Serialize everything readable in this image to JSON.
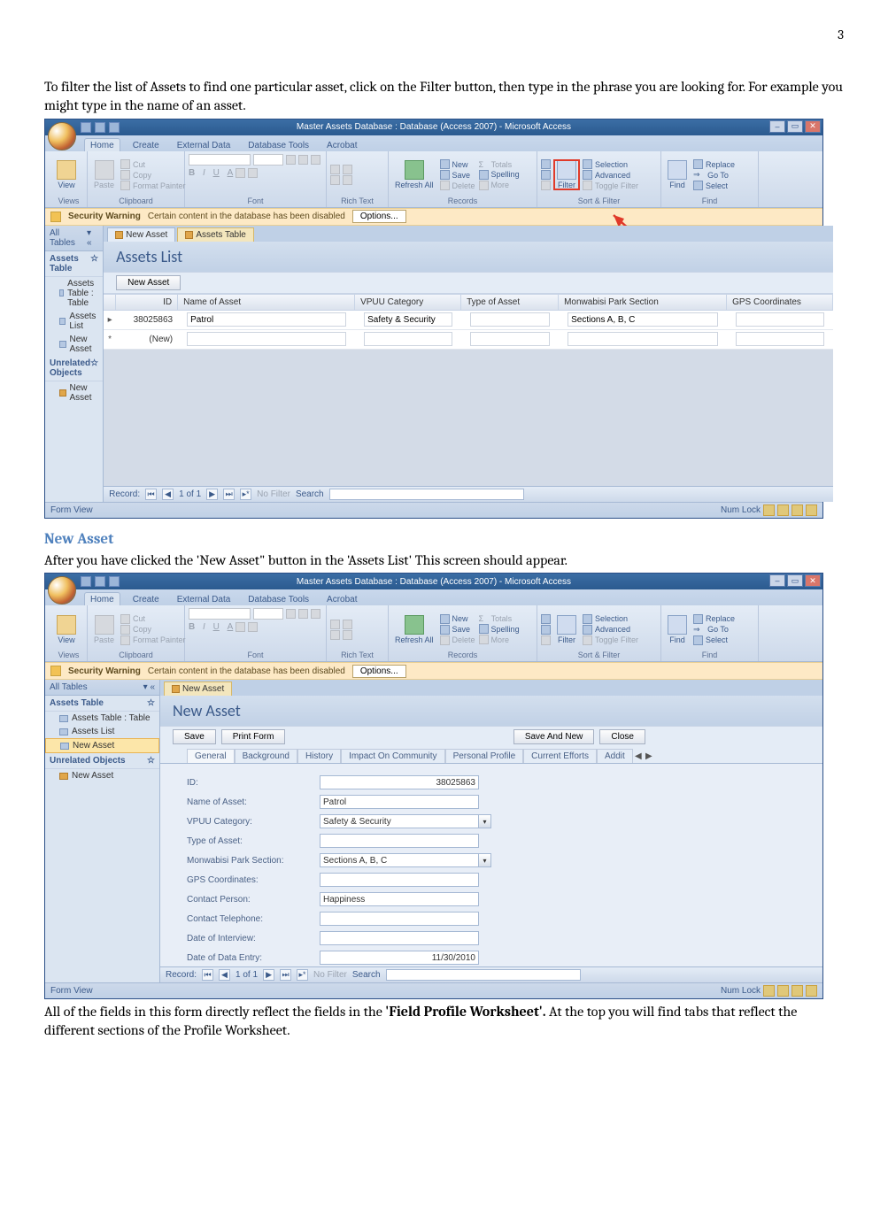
{
  "page_number": "3",
  "intro_para": "To filter the list of Assets to find one particular asset, click on the Filter button, then type in the phrase you are looking for. For example you might type in the name of an asset.",
  "section2_heading": "New Asset",
  "section2_para": "After you have clicked the 'New Asset\" button in the 'Assets List' This screen should appear.",
  "closing_para_pre": "All of the fields in this form directly reflect the fields in the ",
  "closing_para_bold": "'Field Profile Worksheet'.",
  "closing_para_post": "  At the top you will find tabs that reflect the different sections of the Profile Worksheet.",
  "access": {
    "title": "Master Assets Database : Database (Access 2007)  -  Microsoft Access",
    "tabs": [
      "Home",
      "Create",
      "External Data",
      "Database Tools",
      "Acrobat"
    ],
    "groups": {
      "views": {
        "label": "Views",
        "btn": "View"
      },
      "clipboard": {
        "label": "Clipboard",
        "paste": "Paste",
        "items": [
          "Cut",
          "Copy",
          "Format Painter"
        ]
      },
      "font": {
        "label": "Font"
      },
      "richtext": {
        "label": "Rich Text"
      },
      "records": {
        "label": "Records",
        "refresh": "Refresh All",
        "items": [
          "New",
          "Save",
          "Delete"
        ],
        "right": [
          "Totals",
          "Spelling",
          "More"
        ]
      },
      "sortfilter": {
        "label": "Sort & Filter",
        "filter": "Filter",
        "items": [
          "Selection",
          "Advanced",
          "Toggle Filter"
        ]
      },
      "find": {
        "label": "Find",
        "find": "Find",
        "items": [
          "Replace",
          "Go To",
          "Select"
        ]
      }
    },
    "warning": {
      "label": "Security Warning",
      "msg": "Certain content in the database has been disabled",
      "btn": "Options..."
    },
    "nav": {
      "header": "All Tables",
      "cat1": "Assets Table",
      "items1": [
        "Assets Table : Table",
        "Assets List",
        "New Asset"
      ],
      "cat2": "Unrelated Objects",
      "items2": [
        "New Asset"
      ]
    },
    "recnav": {
      "label": "Record:",
      "pos": "1 of 1",
      "nofilter": "No Filter",
      "search": "Search"
    },
    "status_left": "Form View",
    "status_right": "Num Lock"
  },
  "shot1": {
    "doc_tab1": "New Asset",
    "doc_tab2": "Assets Table",
    "form_title": "Assets List",
    "new_btn": "New Asset",
    "columns": [
      "ID",
      "Name of Asset",
      "VPUU Category",
      "Type of Asset",
      "Monwabisi Park Section",
      "GPS Coordinates"
    ],
    "row1": {
      "id": "38025863",
      "name": "Patrol",
      "vpuu": "Safety & Security",
      "type": "",
      "section": "Sections A, B, C",
      "gps": ""
    },
    "row2_marker": "*",
    "row2_new": "(New)"
  },
  "shot2": {
    "doc_tab1": "New Asset",
    "form_title": "New Asset",
    "buttons": {
      "save": "Save",
      "print": "Print Form",
      "savenew": "Save And New",
      "close": "Close"
    },
    "tabs": [
      "General",
      "Background",
      "History",
      "Impact On Community",
      "Personal Profile",
      "Current Efforts",
      "Addit"
    ],
    "fields": [
      {
        "label": "ID:",
        "value": "38025863",
        "align": "r"
      },
      {
        "label": "Name of Asset:",
        "value": "Patrol"
      },
      {
        "label": "VPUU Category:",
        "value": "Safety & Security",
        "dd": true
      },
      {
        "label": "Type of Asset:",
        "value": ""
      },
      {
        "label": "Monwabisi Park Section:",
        "value": "Sections A, B, C",
        "dd": true
      },
      {
        "label": "GPS Coordinates:",
        "value": ""
      },
      {
        "label": "Contact Person:",
        "value": "Happiness"
      },
      {
        "label": "Contact Telephone:",
        "value": ""
      },
      {
        "label": "Date of Interview:",
        "value": ""
      },
      {
        "label": "Date of Data Entry:",
        "value": "11/30/2010",
        "align": "r"
      }
    ]
  }
}
